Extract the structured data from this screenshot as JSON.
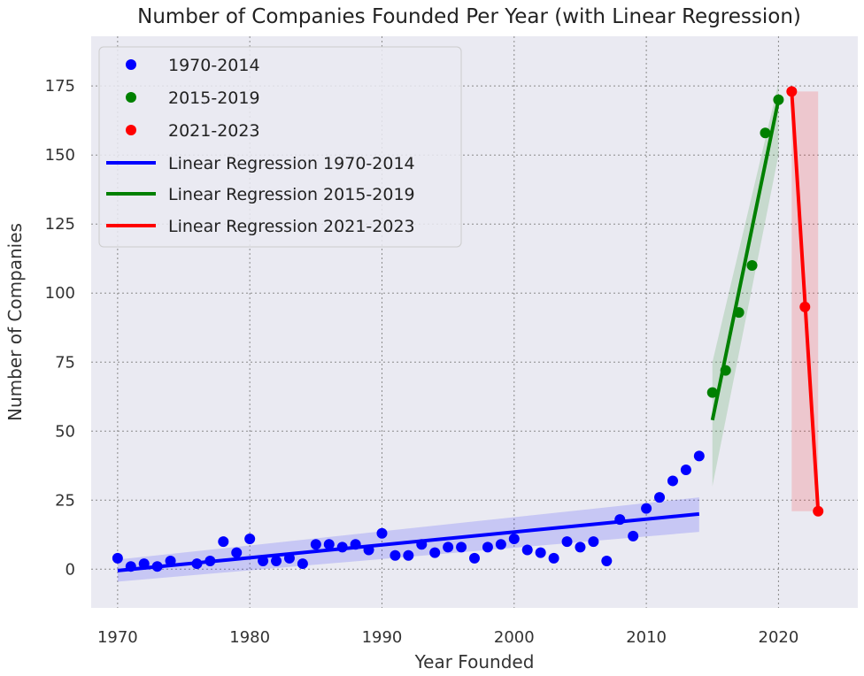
{
  "chart_data": {
    "type": "scatter",
    "title": "Number of Companies Founded Per Year (with Linear Regression)",
    "xlabel": "Year Founded",
    "ylabel": "Number of Companies",
    "xlim": [
      1968,
      2026
    ],
    "ylim": [
      -14,
      193
    ],
    "xticks": [
      1970,
      1980,
      1990,
      2000,
      2010,
      2020
    ],
    "yticks": [
      0,
      25,
      50,
      75,
      100,
      125,
      150,
      175
    ],
    "grid": true,
    "legend_position": "top-left",
    "background_color": "#eaeaf2",
    "series": [
      {
        "name": "1970-2014",
        "kind": "scatter",
        "color": "#0000ff",
        "x": [
          1970,
          1971,
          1972,
          1973,
          1974,
          1976,
          1977,
          1978,
          1979,
          1980,
          1981,
          1982,
          1983,
          1984,
          1985,
          1986,
          1987,
          1988,
          1989,
          1990,
          1991,
          1992,
          1993,
          1994,
          1995,
          1996,
          1997,
          1998,
          1999,
          2000,
          2001,
          2002,
          2003,
          2004,
          2005,
          2006,
          2007,
          2008,
          2009,
          2010,
          2011,
          2012,
          2013,
          2014
        ],
        "y": [
          4,
          1,
          2,
          1,
          3,
          2,
          3,
          10,
          6,
          11,
          3,
          3,
          4,
          2,
          9,
          9,
          8,
          9,
          7,
          13,
          5,
          5,
          9,
          6,
          8,
          8,
          4,
          8,
          9,
          11,
          7,
          6,
          4,
          10,
          8,
          10,
          3,
          18,
          12,
          22,
          26,
          32,
          36,
          41
        ]
      },
      {
        "name": "2015-2019",
        "kind": "scatter",
        "color": "#008000",
        "x": [
          2015,
          2016,
          2017,
          2018,
          2019,
          2020
        ],
        "y": [
          64,
          72,
          93,
          110,
          158,
          170
        ]
      },
      {
        "name": "2021-2023",
        "kind": "scatter",
        "color": "#ff0000",
        "x": [
          2021,
          2022,
          2023
        ],
        "y": [
          173,
          95,
          21
        ]
      },
      {
        "name": "Linear Regression 1970-2014",
        "kind": "line",
        "color": "#0000ff",
        "x": [
          1970,
          2014
        ],
        "y": [
          -0.5,
          20
        ],
        "ci_lower": [
          -4.5,
          13.5
        ],
        "ci_upper": [
          3.5,
          26
        ]
      },
      {
        "name": "Linear Regression 2015-2019",
        "kind": "line",
        "color": "#008000",
        "x": [
          2015,
          2020
        ],
        "y": [
          54,
          170
        ],
        "ci_lower": [
          30,
          150
        ],
        "ci_upper": [
          75,
          176
        ]
      },
      {
        "name": "Linear Regression 2021-2023",
        "kind": "line",
        "color": "#ff0000",
        "x": [
          2021,
          2023
        ],
        "y": [
          173,
          21
        ],
        "ci_lower": [
          21,
          21
        ],
        "ci_upper": [
          173,
          173
        ]
      }
    ]
  }
}
